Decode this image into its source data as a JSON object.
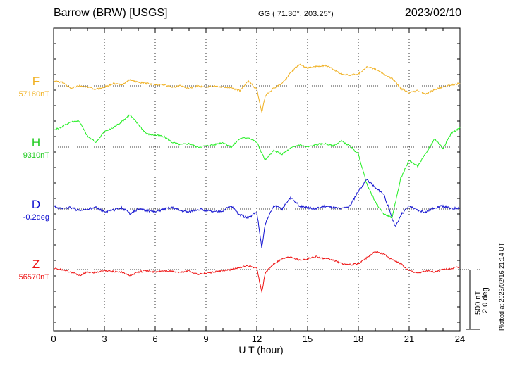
{
  "header": {
    "station": "Barrow (BRW)  [USGS]",
    "coords": "GG ( 71.30°, 203.25°)",
    "date": "2023/02/10"
  },
  "footer": {
    "plotted": "Plotted at 2023/02/16 21:14 UT",
    "scale_nt": "500 nT",
    "scale_deg": "2.0 deg"
  },
  "colors": {
    "F": "#f0b020",
    "H": "#22ee22",
    "D": "#1010d0",
    "Z": "#ee1111"
  },
  "chart_data": {
    "type": "line",
    "xlabel": "U T (hour)",
    "xlim": [
      0,
      24
    ],
    "xticks": [
      "0",
      "3",
      "6",
      "9",
      "12",
      "15",
      "18",
      "21",
      "24"
    ],
    "scale": {
      "nT_per_bar": 500,
      "deg_per_bar": 2.0
    },
    "series": [
      {
        "name": "F",
        "baseline_label": "57180nT",
        "baseline_value": 57180,
        "unit": "nT",
        "points": [
          [
            0,
            57220
          ],
          [
            0.5,
            57210
          ],
          [
            1,
            57160
          ],
          [
            1.5,
            57180
          ],
          [
            2,
            57170
          ],
          [
            2.5,
            57150
          ],
          [
            3,
            57170
          ],
          [
            3.5,
            57200
          ],
          [
            4,
            57190
          ],
          [
            4.5,
            57230
          ],
          [
            5,
            57210
          ],
          [
            5.5,
            57200
          ],
          [
            6,
            57190
          ],
          [
            6.5,
            57190
          ],
          [
            7,
            57170
          ],
          [
            7.5,
            57180
          ],
          [
            8,
            57160
          ],
          [
            8.5,
            57180
          ],
          [
            9,
            57170
          ],
          [
            9.5,
            57180
          ],
          [
            10,
            57170
          ],
          [
            10.5,
            57160
          ],
          [
            11,
            57140
          ],
          [
            11.5,
            57220
          ],
          [
            12,
            57150
          ],
          [
            12.3,
            56960
          ],
          [
            12.5,
            57100
          ],
          [
            13,
            57160
          ],
          [
            13.5,
            57200
          ],
          [
            14,
            57290
          ],
          [
            14.5,
            57360
          ],
          [
            15,
            57330
          ],
          [
            15.5,
            57340
          ],
          [
            16,
            57350
          ],
          [
            16.5,
            57320
          ],
          [
            17,
            57280
          ],
          [
            17.5,
            57270
          ],
          [
            18,
            57280
          ],
          [
            18.5,
            57340
          ],
          [
            19,
            57320
          ],
          [
            19.5,
            57280
          ],
          [
            20,
            57240
          ],
          [
            20.5,
            57160
          ],
          [
            21,
            57120
          ],
          [
            21.5,
            57140
          ],
          [
            22,
            57110
          ],
          [
            22.5,
            57150
          ],
          [
            23,
            57170
          ],
          [
            23.5,
            57190
          ],
          [
            24,
            57200
          ]
        ]
      },
      {
        "name": "H",
        "baseline_label": "9310nT",
        "baseline_value": 9310,
        "unit": "nT",
        "points": [
          [
            0,
            9450
          ],
          [
            0.5,
            9480
          ],
          [
            1,
            9520
          ],
          [
            1.5,
            9530
          ],
          [
            2,
            9400
          ],
          [
            2.5,
            9350
          ],
          [
            3,
            9440
          ],
          [
            3.5,
            9470
          ],
          [
            4,
            9520
          ],
          [
            4.5,
            9580
          ],
          [
            5,
            9500
          ],
          [
            5.5,
            9420
          ],
          [
            6,
            9410
          ],
          [
            6.5,
            9400
          ],
          [
            7,
            9350
          ],
          [
            7.5,
            9330
          ],
          [
            8,
            9340
          ],
          [
            8.5,
            9310
          ],
          [
            9,
            9320
          ],
          [
            9.5,
            9330
          ],
          [
            10,
            9350
          ],
          [
            10.5,
            9310
          ],
          [
            11,
            9380
          ],
          [
            11.5,
            9390
          ],
          [
            12,
            9350
          ],
          [
            12.5,
            9200
          ],
          [
            13,
            9280
          ],
          [
            13.5,
            9250
          ],
          [
            14,
            9300
          ],
          [
            14.5,
            9330
          ],
          [
            15,
            9310
          ],
          [
            15.5,
            9330
          ],
          [
            16,
            9340
          ],
          [
            16.5,
            9320
          ],
          [
            17,
            9360
          ],
          [
            17.5,
            9320
          ],
          [
            18,
            9250
          ],
          [
            18.5,
            9000
          ],
          [
            19,
            8850
          ],
          [
            19.5,
            8750
          ],
          [
            20,
            8720
          ],
          [
            20.5,
            9050
          ],
          [
            21,
            9200
          ],
          [
            21.5,
            9150
          ],
          [
            22,
            9260
          ],
          [
            22.5,
            9380
          ],
          [
            23,
            9300
          ],
          [
            23.5,
            9430
          ],
          [
            24,
            9470
          ]
        ]
      },
      {
        "name": "D",
        "baseline_label": "-0.2deg",
        "baseline_value": -0.2,
        "unit": "deg",
        "points": [
          [
            0,
            -0.1
          ],
          [
            0.5,
            -0.2
          ],
          [
            1,
            -0.15
          ],
          [
            1.5,
            -0.25
          ],
          [
            2,
            -0.2
          ],
          [
            2.5,
            -0.15
          ],
          [
            3,
            -0.3
          ],
          [
            3.5,
            -0.25
          ],
          [
            4,
            -0.15
          ],
          [
            4.5,
            -0.35
          ],
          [
            5,
            -0.2
          ],
          [
            5.5,
            -0.25
          ],
          [
            6,
            -0.3
          ],
          [
            6.5,
            -0.2
          ],
          [
            7,
            -0.15
          ],
          [
            7.5,
            -0.25
          ],
          [
            8,
            -0.3
          ],
          [
            8.5,
            -0.2
          ],
          [
            9,
            -0.25
          ],
          [
            9.5,
            -0.3
          ],
          [
            10,
            -0.25
          ],
          [
            10.5,
            -0.1
          ],
          [
            11,
            -0.4
          ],
          [
            11.5,
            -0.5
          ],
          [
            12,
            -0.3
          ],
          [
            12.3,
            -1.5
          ],
          [
            12.5,
            -0.7
          ],
          [
            13,
            -0.1
          ],
          [
            13.5,
            -0.2
          ],
          [
            14,
            0.2
          ],
          [
            14.5,
            -0.1
          ],
          [
            15,
            -0.15
          ],
          [
            15.5,
            -0.2
          ],
          [
            16,
            -0.1
          ],
          [
            16.5,
            -0.15
          ],
          [
            17,
            -0.2
          ],
          [
            17.5,
            -0.1
          ],
          [
            18,
            0.4
          ],
          [
            18.5,
            0.8
          ],
          [
            19,
            0.5
          ],
          [
            19.5,
            0.3
          ],
          [
            20,
            -0.5
          ],
          [
            20.2,
            -0.8
          ],
          [
            20.5,
            -0.4
          ],
          [
            21,
            -0.1
          ],
          [
            21.5,
            -0.25
          ],
          [
            22,
            -0.3
          ],
          [
            22.5,
            -0.15
          ],
          [
            23,
            -0.1
          ],
          [
            23.5,
            -0.2
          ],
          [
            24,
            -0.15
          ]
        ]
      },
      {
        "name": "Z",
        "baseline_label": "56570nT",
        "baseline_value": 56570,
        "unit": "nT",
        "points": [
          [
            0,
            56580
          ],
          [
            0.5,
            56570
          ],
          [
            1,
            56550
          ],
          [
            1.5,
            56520
          ],
          [
            2,
            56550
          ],
          [
            2.5,
            56545
          ],
          [
            3,
            56560
          ],
          [
            3.5,
            56555
          ],
          [
            4,
            56550
          ],
          [
            4.5,
            56520
          ],
          [
            5,
            56550
          ],
          [
            5.5,
            56560
          ],
          [
            6,
            56550
          ],
          [
            6.5,
            56560
          ],
          [
            7,
            56555
          ],
          [
            7.5,
            56545
          ],
          [
            8,
            56560
          ],
          [
            8.5,
            56530
          ],
          [
            9,
            56540
          ],
          [
            9.5,
            56550
          ],
          [
            10,
            56560
          ],
          [
            10.5,
            56570
          ],
          [
            11,
            56590
          ],
          [
            11.5,
            56600
          ],
          [
            12,
            56580
          ],
          [
            12.3,
            56380
          ],
          [
            12.5,
            56540
          ],
          [
            13,
            56620
          ],
          [
            13.5,
            56660
          ],
          [
            14,
            56680
          ],
          [
            14.5,
            56650
          ],
          [
            15,
            56660
          ],
          [
            15.5,
            56680
          ],
          [
            16,
            56660
          ],
          [
            16.5,
            56650
          ],
          [
            17,
            56620
          ],
          [
            17.5,
            56610
          ],
          [
            18,
            56620
          ],
          [
            18.5,
            56670
          ],
          [
            19,
            56720
          ],
          [
            19.5,
            56700
          ],
          [
            20,
            56650
          ],
          [
            20.5,
            56620
          ],
          [
            21,
            56560
          ],
          [
            21.5,
            56540
          ],
          [
            22,
            56560
          ],
          [
            22.5,
            56550
          ],
          [
            23,
            56570
          ],
          [
            23.5,
            56580
          ],
          [
            24,
            56590
          ]
        ]
      }
    ]
  }
}
